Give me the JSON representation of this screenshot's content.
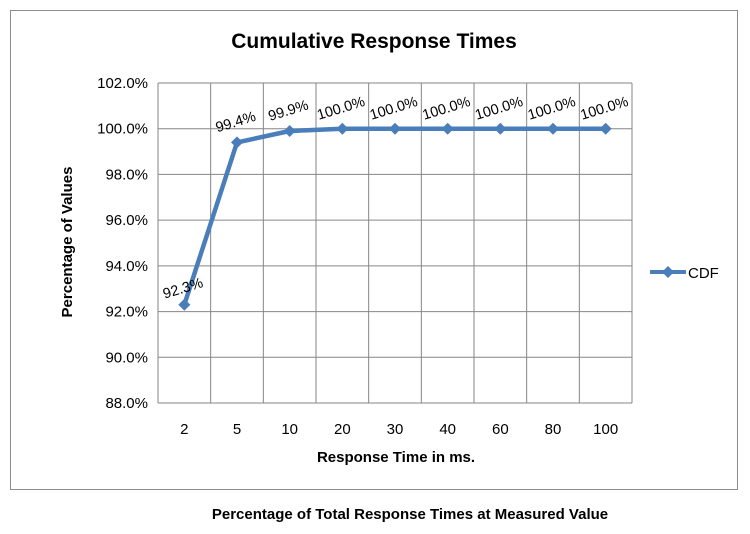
{
  "chart_data": {
    "type": "line",
    "title": "Cumulative Response Times",
    "xlabel": "Response Time in ms.",
    "ylabel": "Percentage of Values",
    "categories": [
      "2",
      "5",
      "10",
      "20",
      "30",
      "40",
      "60",
      "80",
      "100"
    ],
    "series": [
      {
        "name": "CDF",
        "values": [
          92.3,
          99.4,
          99.9,
          100.0,
          100.0,
          100.0,
          100.0,
          100.0,
          100.0
        ],
        "labels": [
          "92.3%",
          "99.4%",
          "99.9%",
          "100.0%",
          "100.0%",
          "100.0%",
          "100.0%",
          "100.0%",
          "100.0%"
        ],
        "color": "#4a7ebb"
      }
    ],
    "ylim": [
      88,
      102
    ],
    "yticks": [
      "88.0%",
      "90.0%",
      "92.0%",
      "94.0%",
      "96.0%",
      "98.0%",
      "100.0%",
      "102.0%"
    ],
    "grid": true,
    "legend_position": "right"
  },
  "caption": "Percentage of Total Response Times at Measured Value"
}
